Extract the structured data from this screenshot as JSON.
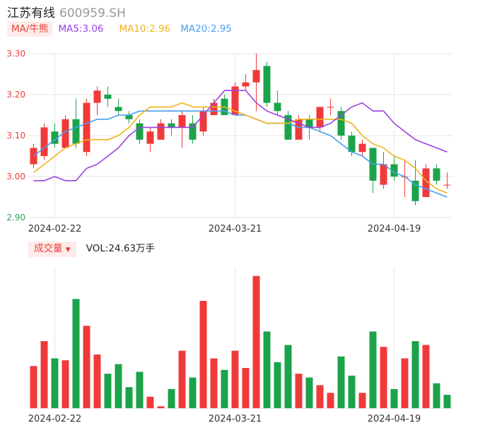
{
  "header": {
    "name": "江苏有线",
    "code": "600959.SH"
  },
  "ma_legend": {
    "tag": "MA/牛熊",
    "ma5": "MA5:3.06",
    "ma10": "MA10:2.96",
    "ma20": "MA20:2.95"
  },
  "vol_legend": {
    "tag": "成交量",
    "value": "VOL:24.63万手"
  },
  "colors": {
    "up": "#f03a3a",
    "down": "#1aa34a",
    "ma5": "#9b41e0",
    "ma10": "#f2b21a",
    "ma20": "#4a9ef0",
    "grid": "#e6e6e6"
  },
  "chart_data": {
    "type": "candlestick",
    "ylim": [
      2.9,
      3.3
    ],
    "yticks": [
      "3.30",
      "3.20",
      "3.10",
      "3.00",
      "2.90"
    ],
    "date_labels": [
      "2024-02-22",
      "2024-03-21",
      "2024-04-19"
    ],
    "date_label_index": [
      2,
      19,
      34
    ],
    "candles": [
      {
        "o": 3.03,
        "c": 3.07,
        "h": 3.08,
        "l": 3.02
      },
      {
        "o": 3.05,
        "c": 3.12,
        "h": 3.13,
        "l": 3.04
      },
      {
        "o": 3.11,
        "c": 3.08,
        "h": 3.13,
        "l": 3.07
      },
      {
        "o": 3.07,
        "c": 3.14,
        "h": 3.15,
        "l": 3.07
      },
      {
        "o": 3.14,
        "c": 3.08,
        "h": 3.19,
        "l": 3.07
      },
      {
        "o": 3.06,
        "c": 3.18,
        "h": 3.19,
        "l": 3.05
      },
      {
        "o": 3.18,
        "c": 3.21,
        "h": 3.22,
        "l": 3.15
      },
      {
        "o": 3.2,
        "c": 3.19,
        "h": 3.22,
        "l": 3.17
      },
      {
        "o": 3.17,
        "c": 3.16,
        "h": 3.19,
        "l": 3.15
      },
      {
        "o": 3.15,
        "c": 3.14,
        "h": 3.16,
        "l": 3.13
      },
      {
        "o": 3.13,
        "c": 3.09,
        "h": 3.14,
        "l": 3.08
      },
      {
        "o": 3.08,
        "c": 3.11,
        "h": 3.12,
        "l": 3.06
      },
      {
        "o": 3.09,
        "c": 3.13,
        "h": 3.14,
        "l": 3.09
      },
      {
        "o": 3.13,
        "c": 3.12,
        "h": 3.14,
        "l": 3.1
      },
      {
        "o": 3.12,
        "c": 3.15,
        "h": 3.16,
        "l": 3.07
      },
      {
        "o": 3.13,
        "c": 3.09,
        "h": 3.15,
        "l": 3.08
      },
      {
        "o": 3.11,
        "c": 3.16,
        "h": 3.17,
        "l": 3.1
      },
      {
        "o": 3.15,
        "c": 3.18,
        "h": 3.19,
        "l": 3.15
      },
      {
        "o": 3.19,
        "c": 3.15,
        "h": 3.2,
        "l": 3.15
      },
      {
        "o": 3.15,
        "c": 3.22,
        "h": 3.23,
        "l": 3.15
      },
      {
        "o": 3.22,
        "c": 3.23,
        "h": 3.25,
        "l": 3.21
      },
      {
        "o": 3.23,
        "c": 3.26,
        "h": 3.3,
        "l": 3.16
      },
      {
        "o": 3.27,
        "c": 3.18,
        "h": 3.28,
        "l": 3.17
      },
      {
        "o": 3.18,
        "c": 3.16,
        "h": 3.21,
        "l": 3.15
      },
      {
        "o": 3.15,
        "c": 3.09,
        "h": 3.16,
        "l": 3.09
      },
      {
        "o": 3.09,
        "c": 3.14,
        "h": 3.15,
        "l": 3.09
      },
      {
        "o": 3.14,
        "c": 3.12,
        "h": 3.15,
        "l": 3.09
      },
      {
        "o": 3.12,
        "c": 3.17,
        "h": 3.17,
        "l": 3.11
      },
      {
        "o": 3.17,
        "c": 3.17,
        "h": 3.19,
        "l": 3.15
      },
      {
        "o": 3.16,
        "c": 3.1,
        "h": 3.17,
        "l": 3.09
      },
      {
        "o": 3.1,
        "c": 3.06,
        "h": 3.11,
        "l": 3.05
      },
      {
        "o": 3.06,
        "c": 3.08,
        "h": 3.09,
        "l": 3.05
      },
      {
        "o": 3.07,
        "c": 2.99,
        "h": 3.07,
        "l": 2.96
      },
      {
        "o": 2.98,
        "c": 3.03,
        "h": 3.06,
        "l": 2.97
      },
      {
        "o": 3.03,
        "c": 3.0,
        "h": 3.05,
        "l": 2.99
      },
      {
        "o": 3.0,
        "c": 3.0,
        "h": 3.04,
        "l": 2.95
      },
      {
        "o": 2.99,
        "c": 2.94,
        "h": 3.04,
        "l": 2.93
      },
      {
        "o": 2.95,
        "c": 3.02,
        "h": 3.03,
        "l": 2.95
      },
      {
        "o": 3.02,
        "c": 2.99,
        "h": 3.03,
        "l": 2.98
      },
      {
        "o": 2.98,
        "c": 2.98,
        "h": 3.01,
        "l": 2.97
      }
    ],
    "ma5": [
      2.99,
      2.99,
      3.0,
      2.99,
      2.99,
      3.02,
      3.03,
      3.05,
      3.07,
      3.1,
      3.12,
      3.12,
      3.12,
      3.12,
      3.12,
      3.12,
      3.15,
      3.18,
      3.21,
      3.21,
      3.21,
      3.18,
      3.16,
      3.15,
      3.14,
      3.13,
      3.12,
      3.12,
      3.13,
      3.15,
      3.17,
      3.18,
      3.16,
      3.16,
      3.13,
      3.11,
      3.09,
      3.08,
      3.07,
      3.06
    ],
    "ma10": [
      3.01,
      3.03,
      3.05,
      3.07,
      3.08,
      3.09,
      3.09,
      3.09,
      3.1,
      3.12,
      3.15,
      3.17,
      3.17,
      3.17,
      3.18,
      3.17,
      3.17,
      3.17,
      3.17,
      3.16,
      3.15,
      3.14,
      3.13,
      3.13,
      3.13,
      3.14,
      3.14,
      3.14,
      3.14,
      3.14,
      3.13,
      3.1,
      3.08,
      3.07,
      3.05,
      3.04,
      3.02,
      2.99,
      2.97,
      2.96
    ],
    "ma20": [
      3.05,
      3.07,
      3.09,
      3.11,
      3.12,
      3.13,
      3.14,
      3.14,
      3.15,
      3.15,
      3.16,
      3.16,
      3.16,
      3.16,
      3.16,
      3.16,
      3.16,
      3.16,
      3.16,
      3.15,
      3.15,
      3.14,
      3.13,
      3.13,
      3.13,
      3.12,
      3.12,
      3.11,
      3.1,
      3.08,
      3.06,
      3.05,
      3.03,
      3.03,
      3.01,
      3.0,
      2.98,
      2.97,
      2.96,
      2.95
    ],
    "volume": [
      22,
      35,
      26,
      25,
      57,
      43,
      28,
      18,
      23,
      11,
      19,
      6,
      1,
      10,
      30,
      16,
      56,
      26,
      20,
      30,
      21,
      69,
      40,
      24,
      33,
      18,
      16,
      12,
      8,
      27,
      17,
      8,
      40,
      32,
      10,
      26,
      35,
      33,
      13,
      7
    ],
    "volume_up": [
      true,
      true,
      false,
      true,
      false,
      true,
      true,
      false,
      false,
      false,
      false,
      true,
      true,
      false,
      true,
      false,
      true,
      true,
      false,
      true,
      true,
      true,
      false,
      false,
      false,
      true,
      false,
      true,
      true,
      false,
      false,
      true,
      false,
      true,
      false,
      true,
      false,
      true,
      false,
      false
    ]
  }
}
